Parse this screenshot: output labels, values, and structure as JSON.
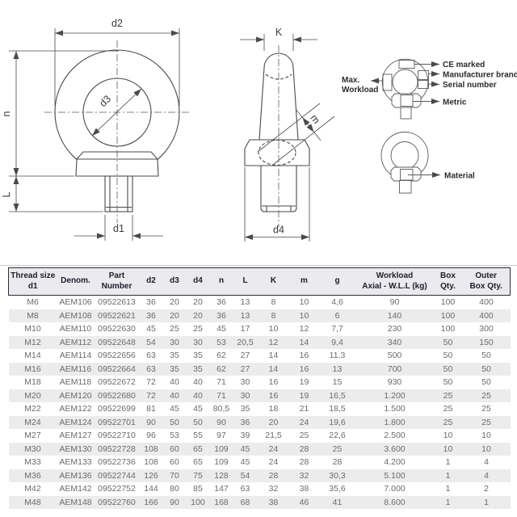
{
  "drawing": {
    "front_view": {
      "d2": "d2",
      "d3": "d3",
      "n": "n",
      "L": "L",
      "d1": "d1"
    },
    "side_view": {
      "K": "K",
      "m": "m",
      "d4": "d4"
    },
    "callouts": {
      "max_workload": {
        "line1": "Max.",
        "line2": "Workload"
      },
      "ce_marked": "CE marked",
      "manufacturer_brand": "Manufacturer brand",
      "serial_number": "Serial number",
      "metric": "Metric",
      "material": "Material"
    }
  },
  "table": {
    "headers": [
      "Thread size\nd1",
      "Denom.",
      "Part\nNumber",
      "d2",
      "d3",
      "d4",
      "n",
      "L",
      "K",
      "m",
      "g",
      "Workload\nAxial - W.L.L (kg)",
      "Box\nQty.",
      "Outer\nBox Qty."
    ],
    "rows": [
      [
        "M6",
        "AEM106",
        "09522613",
        "36",
        "20",
        "20",
        "36",
        "13",
        "8",
        "10",
        "4,6",
        "90",
        "100",
        "400"
      ],
      [
        "M8",
        "AEM108",
        "09522621",
        "36",
        "20",
        "20",
        "36",
        "13",
        "8",
        "10",
        "6",
        "140",
        "100",
        "400"
      ],
      [
        "M10",
        "AEM110",
        "09522630",
        "45",
        "25",
        "25",
        "45",
        "17",
        "10",
        "12",
        "7,7",
        "230",
        "100",
        "300"
      ],
      [
        "M12",
        "AEM112",
        "09522648",
        "54",
        "30",
        "30",
        "53",
        "20,5",
        "12",
        "14",
        "9,4",
        "340",
        "50",
        "150"
      ],
      [
        "M14",
        "AEM114",
        "09522656",
        "63",
        "35",
        "35",
        "62",
        "27",
        "14",
        "16",
        "11,3",
        "500",
        "50",
        "50"
      ],
      [
        "M16",
        "AEM116",
        "09522664",
        "63",
        "35",
        "35",
        "62",
        "27",
        "14",
        "16",
        "13",
        "700",
        "50",
        "50"
      ],
      [
        "M18",
        "AEM118",
        "09522672",
        "72",
        "40",
        "40",
        "71",
        "30",
        "16",
        "19",
        "15",
        "930",
        "50",
        "50"
      ],
      [
        "M20",
        "AEM120",
        "09522680",
        "72",
        "40",
        "40",
        "71",
        "30",
        "16",
        "19",
        "16,5",
        "1.200",
        "25",
        "25"
      ],
      [
        "M22",
        "AEM122",
        "09522699",
        "81",
        "45",
        "45",
        "80,5",
        "35",
        "18",
        "21",
        "18,5",
        "1.500",
        "25",
        "25"
      ],
      [
        "M24",
        "AEM124",
        "09522701",
        "90",
        "50",
        "50",
        "90",
        "36",
        "20",
        "24",
        "19,6",
        "1.800",
        "25",
        "25"
      ],
      [
        "M27",
        "AEM127",
        "09522710",
        "96",
        "53",
        "55",
        "97",
        "39",
        "21,5",
        "25",
        "22,6",
        "2.500",
        "10",
        "10"
      ],
      [
        "M30",
        "AEM130",
        "09522728",
        "108",
        "60",
        "65",
        "109",
        "45",
        "24",
        "28",
        "25",
        "3.600",
        "10",
        "10"
      ],
      [
        "M33",
        "AEM133",
        "09522736",
        "108",
        "60",
        "65",
        "109",
        "45",
        "24",
        "28",
        "28",
        "4.200",
        "1",
        "4"
      ],
      [
        "M36",
        "AEM136",
        "09522744",
        "126",
        "70",
        "75",
        "128",
        "54",
        "28",
        "32",
        "30,3",
        "5.100",
        "1",
        "4"
      ],
      [
        "M42",
        "AEM142",
        "09522752",
        "144",
        "80",
        "85",
        "147",
        "63",
        "32",
        "38",
        "35,6",
        "7.000",
        "1",
        "2"
      ],
      [
        "M48",
        "AEM148",
        "09522760",
        "166",
        "90",
        "100",
        "168",
        "68",
        "38",
        "46",
        "41",
        "8.600",
        "1",
        "1"
      ]
    ]
  },
  "palette": {
    "line": "#4a4a4a",
    "header_bg": "#eaeaef",
    "header_border": "#2b2b38",
    "row_alt_bg": "#ececec",
    "cell_text": "#6b6b6b"
  }
}
